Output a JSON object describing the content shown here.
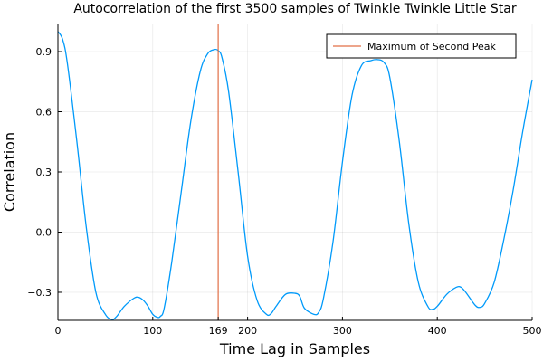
{
  "chart_data": {
    "type": "line",
    "title": "Autocorrelation of the first 3500 samples of Twinkle Twinkle Little Star",
    "xlabel": "Time Lag in Samples",
    "ylabel": "Correlation",
    "xlim": [
      0,
      500
    ],
    "ylim": [
      -0.44,
      1.04
    ],
    "grid": true,
    "legend_position": "top-right",
    "x_ticks": [
      0,
      100,
      169,
      200,
      300,
      400,
      500
    ],
    "x_tick_labels": [
      "0",
      "100",
      "169",
      "200",
      "300",
      "400",
      "500"
    ],
    "y_ticks": [
      -0.3,
      0.0,
      0.3,
      0.6,
      0.9
    ],
    "y_tick_labels": [
      "-0.3",
      "0.0",
      "0.3",
      "0.6",
      "0.9"
    ],
    "series": [
      {
        "color": "#009AFA",
        "x": [
          0,
          5,
          10,
          20,
          30,
          40,
          50,
          57,
          62,
          70,
          80,
          85,
          90,
          95,
          100,
          105,
          108,
          112,
          120,
          130,
          140,
          150,
          158,
          165,
          169,
          173,
          180,
          190,
          200,
          210,
          220,
          225,
          230,
          240,
          250,
          255,
          260,
          270,
          275,
          280,
          290,
          300,
          310,
          320,
          330,
          337,
          344,
          350,
          360,
          370,
          380,
          390,
          395,
          400,
          410,
          420,
          425,
          430,
          440,
          445,
          450,
          460,
          470,
          480,
          490,
          500
        ],
        "y": [
          1.0,
          0.96,
          0.84,
          0.45,
          0.02,
          -0.3,
          -0.41,
          -0.435,
          -0.42,
          -0.37,
          -0.33,
          -0.325,
          -0.34,
          -0.37,
          -0.41,
          -0.425,
          -0.42,
          -0.38,
          -0.15,
          0.2,
          0.55,
          0.8,
          0.89,
          0.91,
          0.905,
          0.87,
          0.7,
          0.3,
          -0.12,
          -0.34,
          -0.41,
          -0.405,
          -0.37,
          -0.31,
          -0.305,
          -0.32,
          -0.38,
          -0.41,
          -0.4,
          -0.33,
          -0.05,
          0.35,
          0.68,
          0.83,
          0.855,
          0.86,
          0.845,
          0.77,
          0.45,
          0.04,
          -0.25,
          -0.37,
          -0.385,
          -0.37,
          -0.31,
          -0.275,
          -0.275,
          -0.3,
          -0.365,
          -0.375,
          -0.355,
          -0.25,
          -0.04,
          0.21,
          0.5,
          0.76
        ]
      },
      {
        "name": "Maximum of Second Peak",
        "type": "vline",
        "color": "#E26F46",
        "x": 169
      }
    ]
  }
}
